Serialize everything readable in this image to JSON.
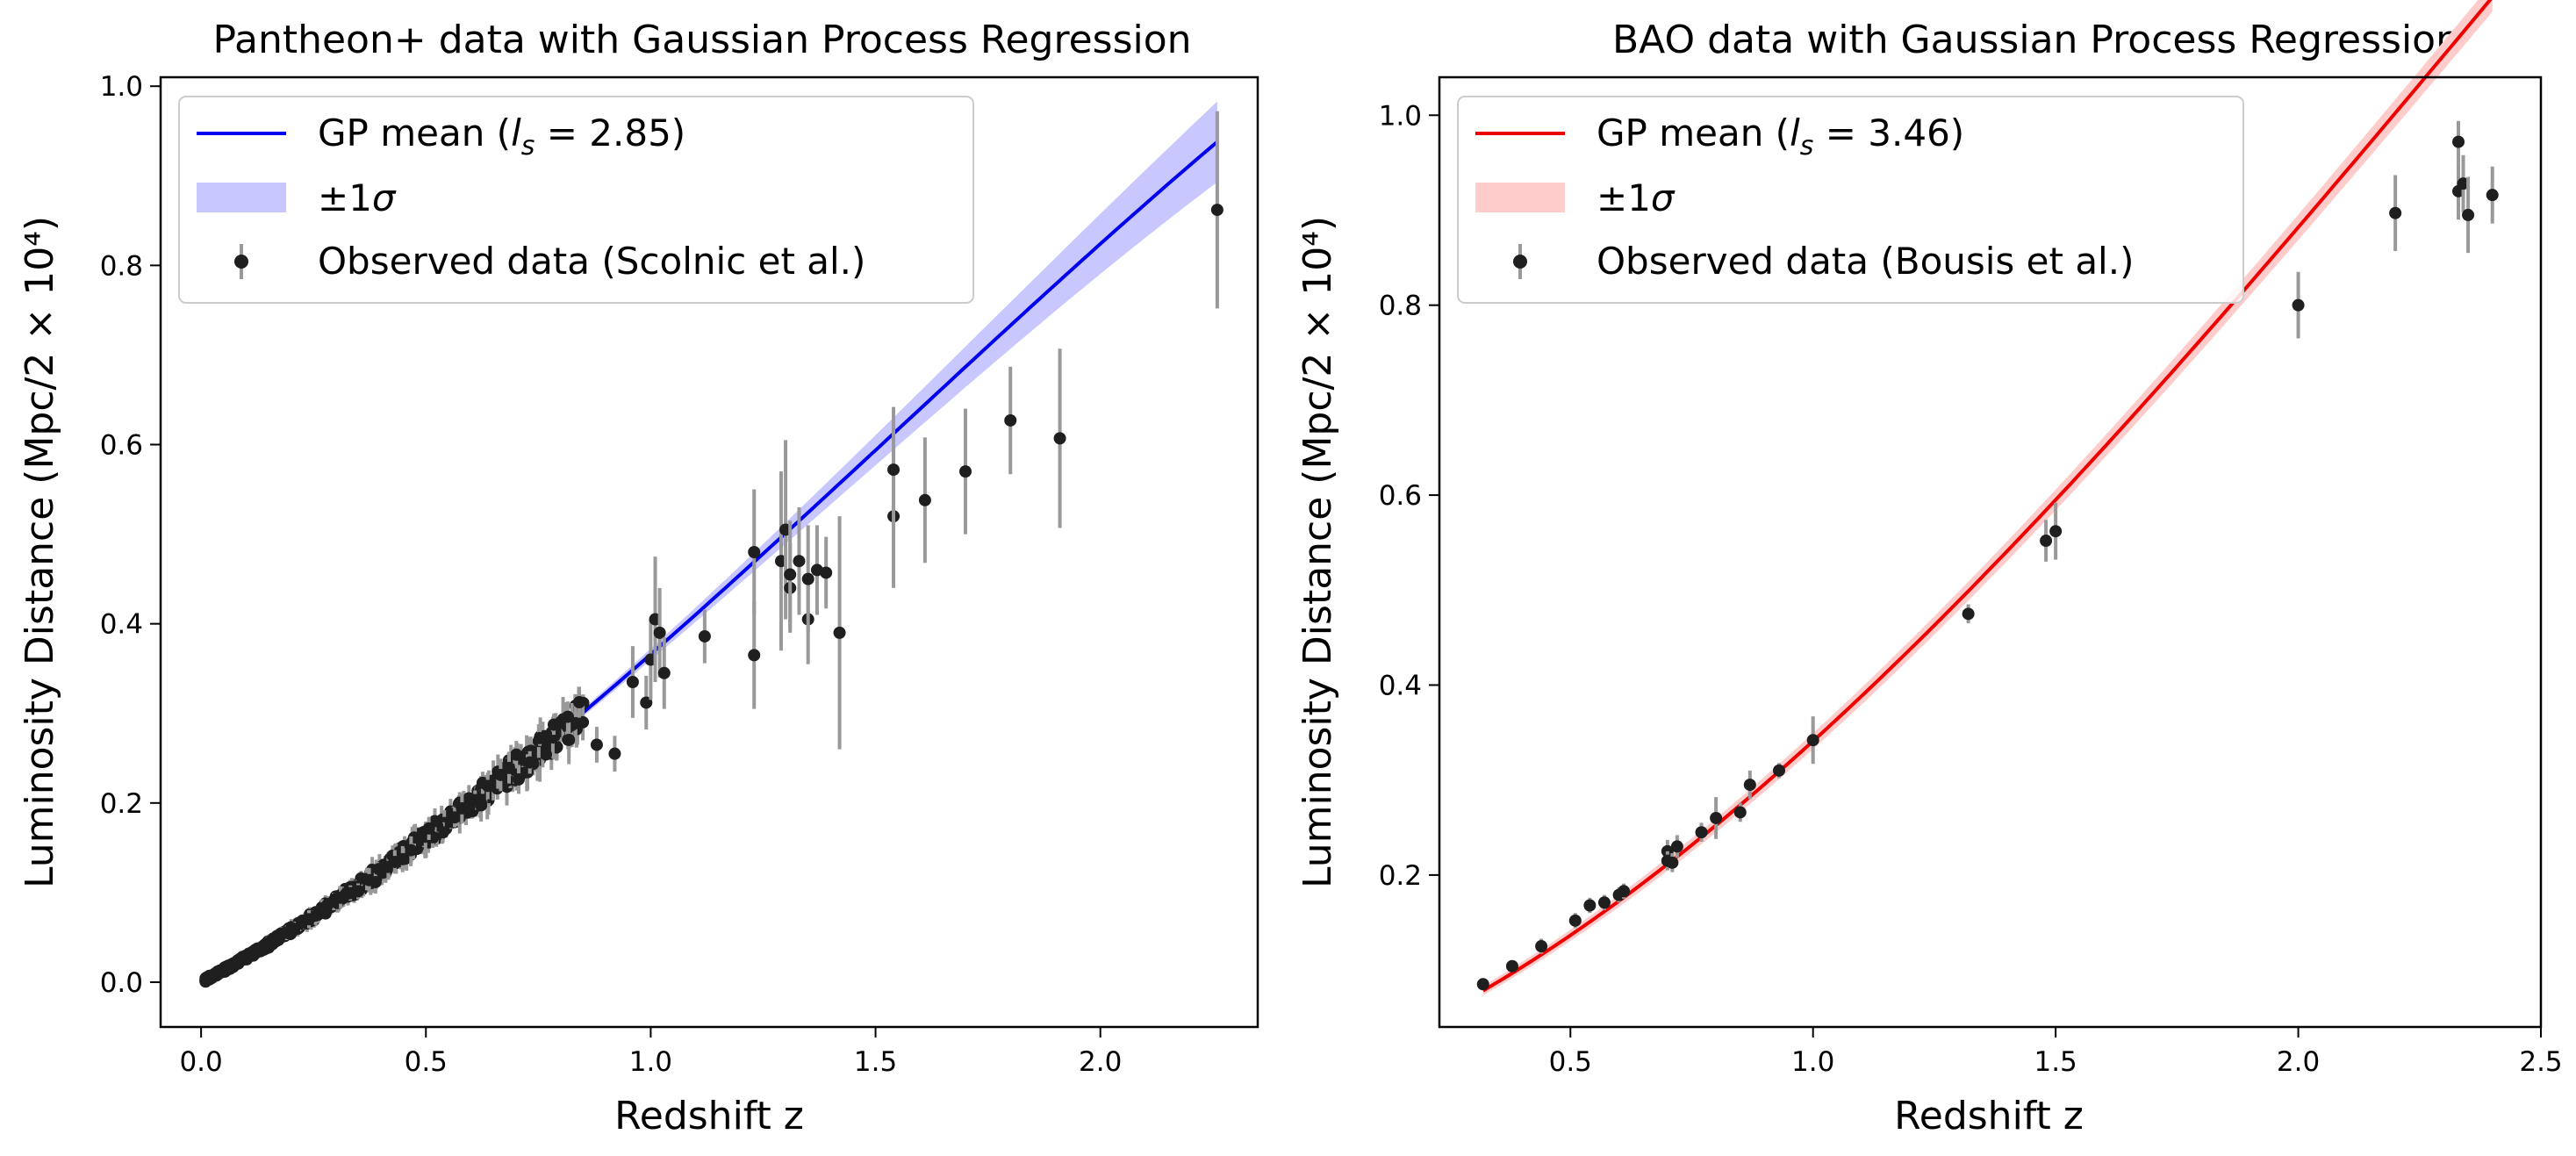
{
  "chart_data": [
    {
      "type": "scatter",
      "title": "Pantheon+ data with Gaussian Process Regression",
      "xlabel": "Redshift z",
      "ylabel": "Luminosity Distance (Mpc/2 × 10⁴)",
      "xlim": [
        -0.09,
        2.35
      ],
      "ylim": [
        -0.05,
        1.01
      ],
      "xticks": [
        0.0,
        0.5,
        1.0,
        1.5,
        2.0
      ],
      "xtick_labels": [
        "0.0",
        "0.5",
        "1.0",
        "1.5",
        "2.0"
      ],
      "yticks": [
        0.0,
        0.2,
        0.4,
        0.6,
        0.8,
        1.0
      ],
      "ytick_labels": [
        "0.0",
        "0.2",
        "0.4",
        "0.6",
        "0.8",
        "1.0"
      ],
      "legend": {
        "position": "upper-left",
        "entries": [
          {
            "label": "GP mean (",
            "math": "l",
            "sub": "s",
            "suffix": " = 2.85)",
            "kind": "line"
          },
          {
            "label": "±1",
            "math": "σ",
            "kind": "band"
          },
          {
            "label": "Observed data (Scolnic et al.)",
            "kind": "marker"
          }
        ]
      },
      "gp": {
        "ls": 2.85,
        "sigma_at_max": 0.045
      },
      "dense_data": {
        "z_min": 0.01,
        "z_max": 0.85,
        "count": 520,
        "seed": 11
      },
      "points": [
        {
          "x": 0.88,
          "y": 0.265,
          "err": 0.02
        },
        {
          "x": 0.92,
          "y": 0.255,
          "err": 0.02
        },
        {
          "x": 0.96,
          "y": 0.335,
          "err": 0.04
        },
        {
          "x": 0.99,
          "y": 0.312,
          "err": 0.03
        },
        {
          "x": 1.0,
          "y": 0.36,
          "err": 0.045
        },
        {
          "x": 1.01,
          "y": 0.405,
          "err": 0.07
        },
        {
          "x": 1.02,
          "y": 0.39,
          "err": 0.05
        },
        {
          "x": 1.03,
          "y": 0.345,
          "err": 0.04
        },
        {
          "x": 1.12,
          "y": 0.386,
          "err": 0.03
        },
        {
          "x": 1.23,
          "y": 0.365,
          "err": 0.06
        },
        {
          "x": 1.23,
          "y": 0.48,
          "err": 0.07
        },
        {
          "x": 1.29,
          "y": 0.47,
          "err": 0.1
        },
        {
          "x": 1.3,
          "y": 0.505,
          "err": 0.1
        },
        {
          "x": 1.31,
          "y": 0.44,
          "err": 0.05
        },
        {
          "x": 1.31,
          "y": 0.455,
          "err": 0.06
        },
        {
          "x": 1.33,
          "y": 0.47,
          "err": 0.06
        },
        {
          "x": 1.35,
          "y": 0.405,
          "err": 0.05
        },
        {
          "x": 1.35,
          "y": 0.45,
          "err": 0.06
        },
        {
          "x": 1.37,
          "y": 0.46,
          "err": 0.05
        },
        {
          "x": 1.39,
          "y": 0.457,
          "err": 0.04
        },
        {
          "x": 1.42,
          "y": 0.39,
          "err": 0.13
        },
        {
          "x": 1.54,
          "y": 0.52,
          "err": 0.08
        },
        {
          "x": 1.54,
          "y": 0.572,
          "err": 0.07
        },
        {
          "x": 1.61,
          "y": 0.538,
          "err": 0.07
        },
        {
          "x": 1.7,
          "y": 0.57,
          "err": 0.07
        },
        {
          "x": 1.8,
          "y": 0.627,
          "err": 0.06
        },
        {
          "x": 1.91,
          "y": 0.607,
          "err": 0.1
        },
        {
          "x": 2.26,
          "y": 0.862,
          "err": 0.11
        }
      ]
    },
    {
      "type": "scatter",
      "title": "BAO data with Gaussian Process Regression",
      "xlabel": "Redshift z",
      "ylabel": "Luminosity Distance (Mpc/2 × 10⁴)",
      "xlim": [
        0.23,
        2.5
      ],
      "ylim": [
        0.04,
        1.04
      ],
      "xticks": [
        0.5,
        1.0,
        1.5,
        2.0,
        2.5
      ],
      "xtick_labels": [
        "0.5",
        "1.0",
        "1.5",
        "2.0",
        "2.5"
      ],
      "yticks": [
        0.2,
        0.4,
        0.6,
        0.8,
        1.0
      ],
      "ytick_labels": [
        "0.2",
        "0.4",
        "0.6",
        "0.8",
        "1.0"
      ],
      "legend": {
        "position": "upper-left",
        "entries": [
          {
            "label": "GP mean (",
            "math": "l",
            "sub": "s",
            "suffix": " = 3.46)",
            "kind": "line"
          },
          {
            "label": "±1",
            "math": "σ",
            "kind": "band"
          },
          {
            "label": "Observed data (Bousis et al.)",
            "kind": "marker"
          }
        ]
      },
      "gp": {
        "ls": 3.46
      },
      "points": [
        {
          "x": 0.32,
          "y": 0.085,
          "err": 0.006
        },
        {
          "x": 0.38,
          "y": 0.104,
          "err": 0.006
        },
        {
          "x": 0.44,
          "y": 0.125,
          "err": 0.008
        },
        {
          "x": 0.51,
          "y": 0.152,
          "err": 0.008
        },
        {
          "x": 0.54,
          "y": 0.168,
          "err": 0.008
        },
        {
          "x": 0.57,
          "y": 0.171,
          "err": 0.008
        },
        {
          "x": 0.6,
          "y": 0.179,
          "err": 0.008
        },
        {
          "x": 0.61,
          "y": 0.183,
          "err": 0.008
        },
        {
          "x": 0.7,
          "y": 0.225,
          "err": 0.012
        },
        {
          "x": 0.7,
          "y": 0.215,
          "err": 0.01
        },
        {
          "x": 0.71,
          "y": 0.213,
          "err": 0.01
        },
        {
          "x": 0.72,
          "y": 0.23,
          "err": 0.012
        },
        {
          "x": 0.77,
          "y": 0.245,
          "err": 0.01
        },
        {
          "x": 0.8,
          "y": 0.26,
          "err": 0.022
        },
        {
          "x": 0.85,
          "y": 0.266,
          "err": 0.01
        },
        {
          "x": 0.87,
          "y": 0.295,
          "err": 0.015
        },
        {
          "x": 0.93,
          "y": 0.31,
          "err": 0.008
        },
        {
          "x": 1.0,
          "y": 0.342,
          "err": 0.025
        },
        {
          "x": 1.32,
          "y": 0.475,
          "err": 0.01
        },
        {
          "x": 1.48,
          "y": 0.552,
          "err": 0.022
        },
        {
          "x": 1.5,
          "y": 0.562,
          "err": 0.03
        },
        {
          "x": 2.0,
          "y": 0.8,
          "err": 0.035
        },
        {
          "x": 2.2,
          "y": 0.897,
          "err": 0.04
        },
        {
          "x": 2.33,
          "y": 0.972,
          "err": 0.022
        },
        {
          "x": 2.33,
          "y": 0.92,
          "err": 0.03
        },
        {
          "x": 2.34,
          "y": 0.928,
          "err": 0.03
        },
        {
          "x": 2.35,
          "y": 0.895,
          "err": 0.04
        },
        {
          "x": 2.4,
          "y": 0.916,
          "err": 0.03
        }
      ]
    }
  ],
  "colors": {
    "gp_left": "#0000ee",
    "band_left": "#c8c8ff",
    "gp_right": "#ee0000",
    "band_right": "#ffcccc",
    "errorbar": "#999999",
    "marker": "#1f1f1f"
  }
}
